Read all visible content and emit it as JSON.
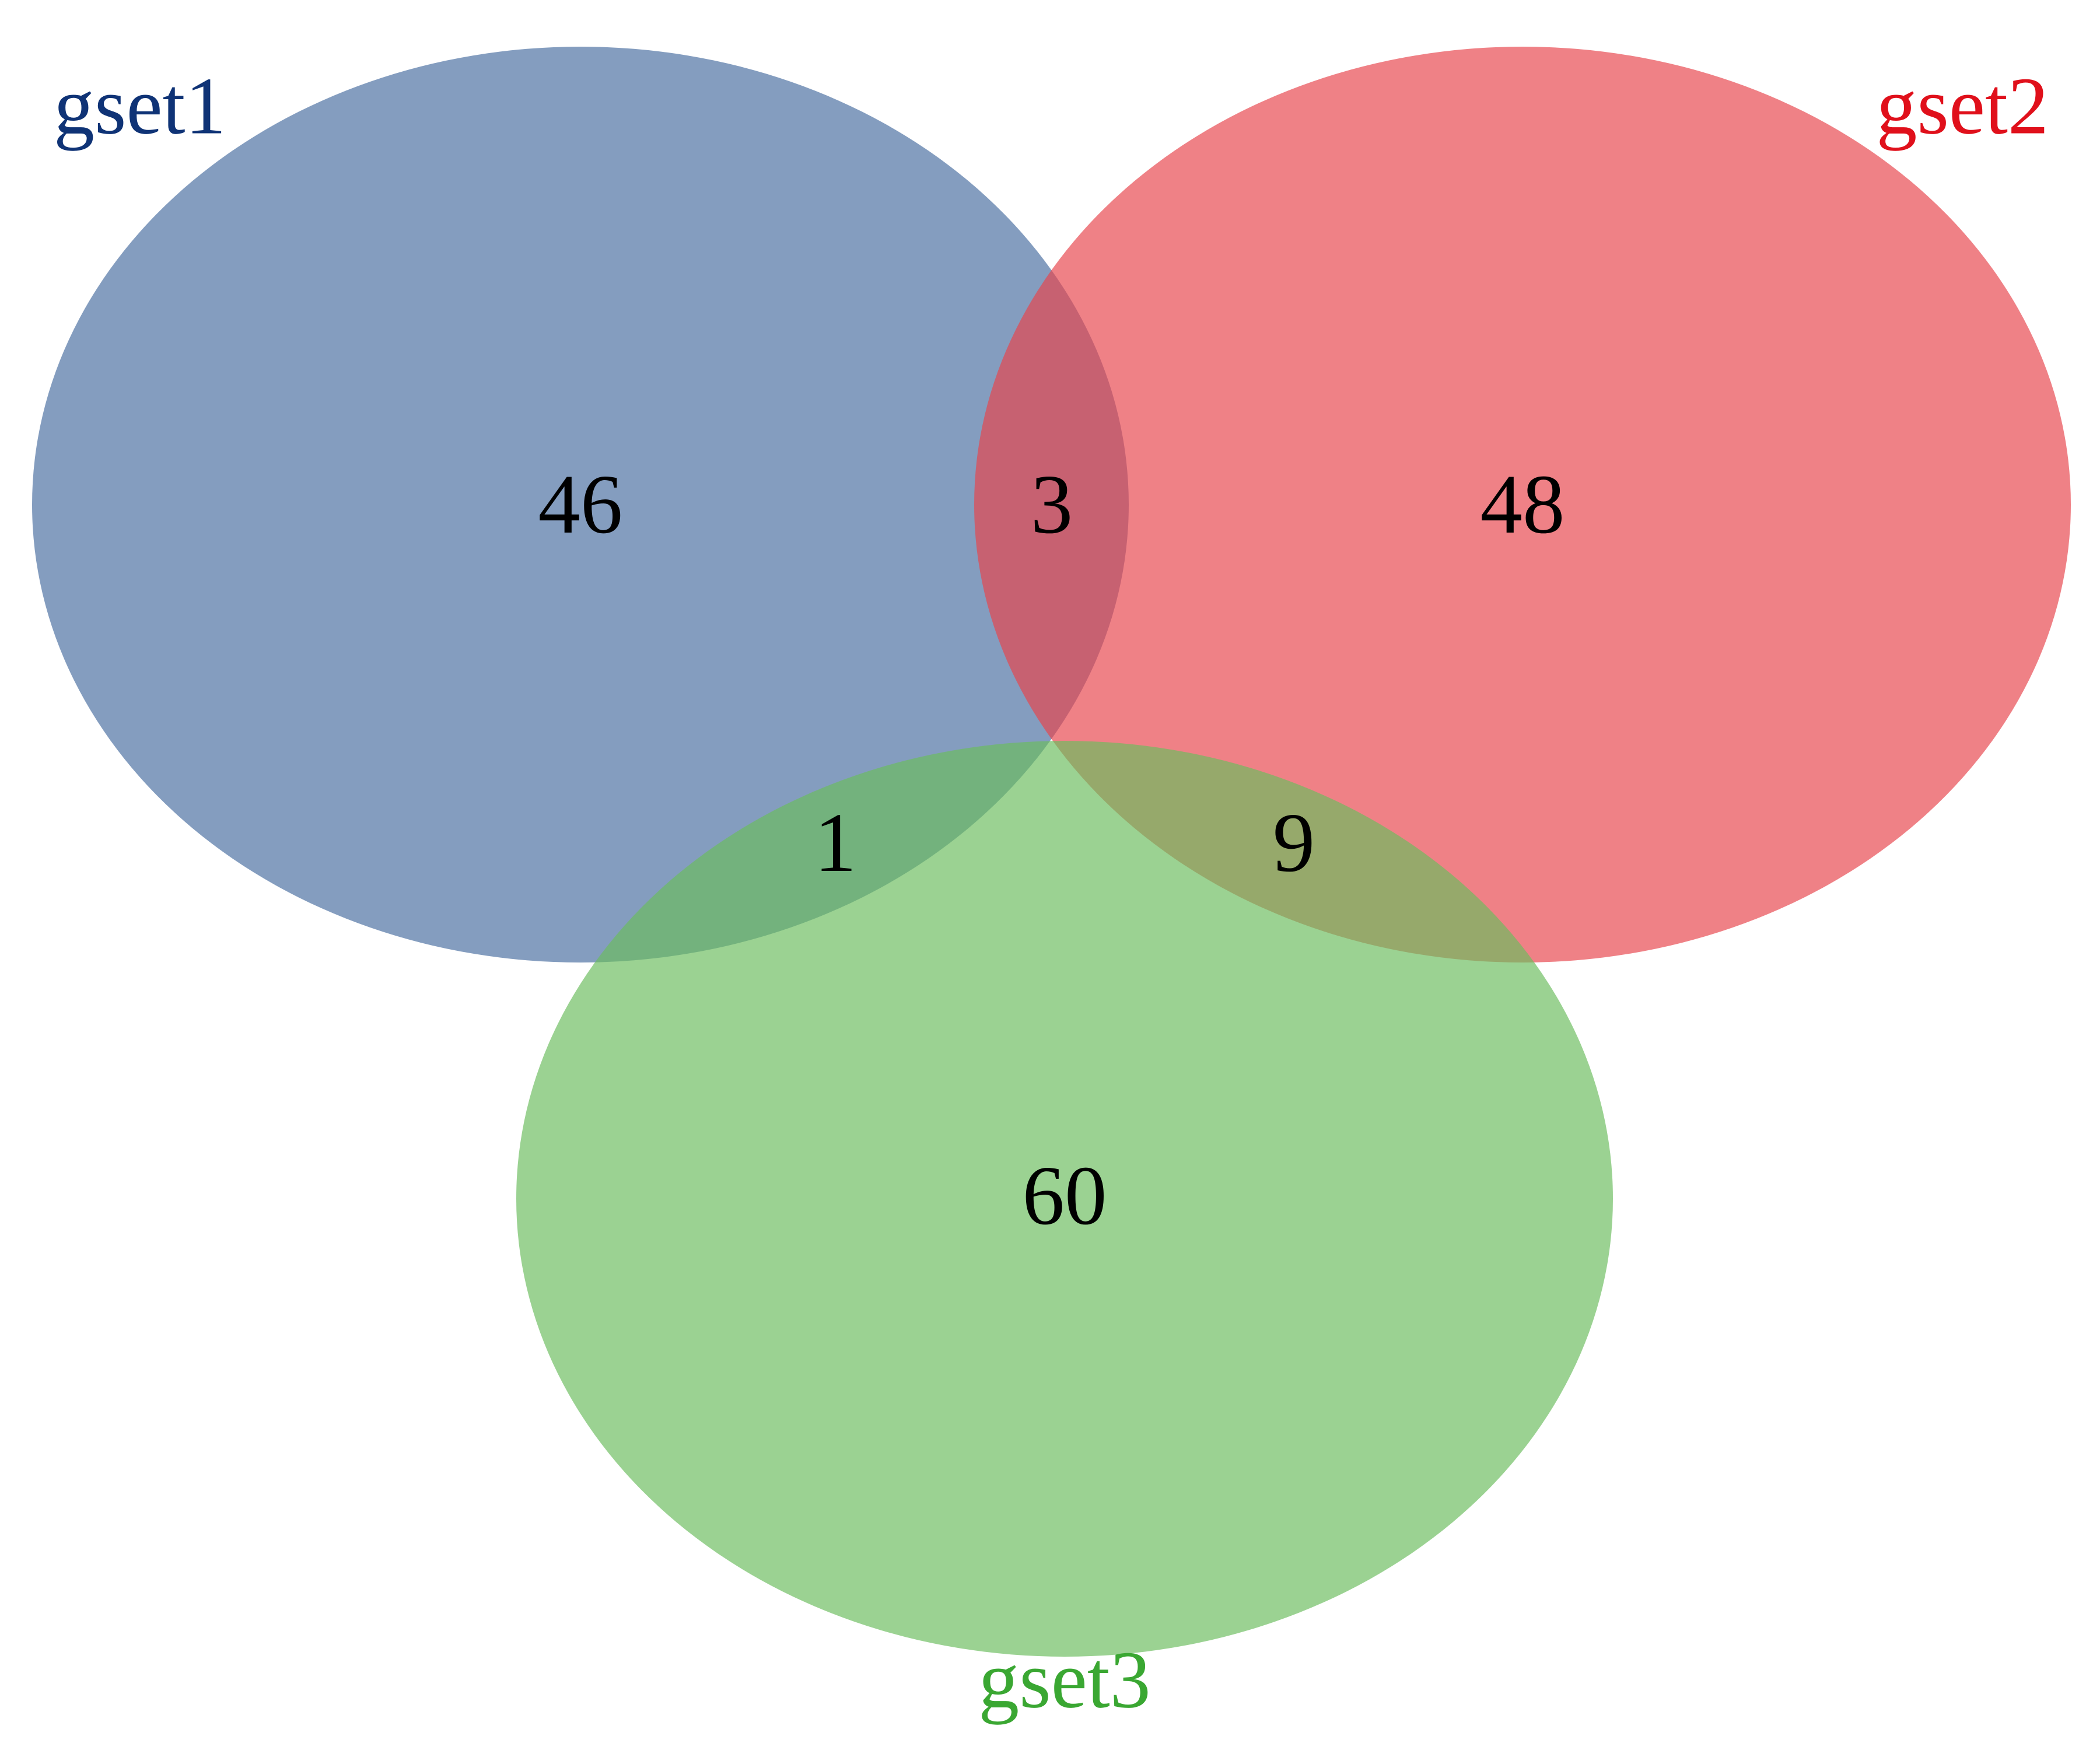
{
  "sets": [
    {
      "key": "gset1",
      "label": "gset1",
      "fill_color": "#4a6fa0",
      "label_color": "#0f3376"
    },
    {
      "key": "gset2",
      "label": "gset2",
      "fill_color": "#e8454d",
      "label_color": "#e0101b"
    },
    {
      "key": "gset3",
      "label": "gset3",
      "fill_color": "#6bbd5f",
      "label_color": "#3aa732"
    }
  ],
  "regions": {
    "only_gset1": "46",
    "gset1_gset2": "3",
    "only_gset2": "48",
    "gset1_gset3": "1",
    "gset2_gset3": "9",
    "only_gset3": "60"
  },
  "fill_opacity": 0.68
}
